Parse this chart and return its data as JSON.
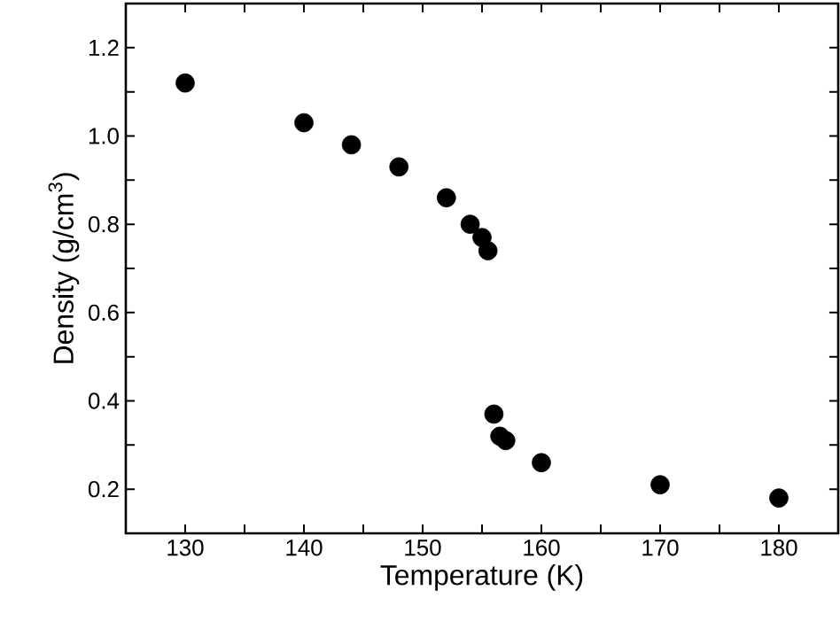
{
  "chart_data": {
    "type": "scatter",
    "xlabel": "Temperature (K)",
    "ylabel": "Density (g/cm$^{3}$)",
    "xlim": [
      125,
      185
    ],
    "ylim": [
      0.1,
      1.3
    ],
    "xticks": [
      {
        "value": 125,
        "label": null
      },
      130,
      {
        "value": 135,
        "label": null
      },
      140,
      {
        "value": 145,
        "label": null
      },
      150,
      {
        "value": 155,
        "label": null
      },
      160,
      {
        "value": 165,
        "label": null
      },
      170,
      {
        "value": 175,
        "label": null
      },
      180,
      {
        "value": 185,
        "label": null
      }
    ],
    "yticks": [
      {
        "value": 0.1,
        "label": null
      },
      0.2,
      {
        "value": 0.3,
        "label": null
      },
      0.4,
      {
        "value": 0.5,
        "label": null
      },
      0.6,
      {
        "value": 0.7,
        "label": null
      },
      0.8,
      {
        "value": 0.9,
        "label": null
      },
      {
        "value": 1.0,
        "label": "1.0"
      },
      {
        "value": 1.1,
        "label": null
      },
      1.2,
      {
        "value": 1.3,
        "label": null
      }
    ],
    "marker": "circle",
    "grid": false,
    "series": [
      {
        "color": "#000000",
        "x": [
          130,
          140,
          144,
          148,
          152,
          154,
          155,
          155.5,
          156,
          156.5,
          157,
          160,
          170,
          180
        ],
        "values": [
          1.12,
          1.03,
          0.98,
          0.93,
          0.86,
          0.8,
          0.77,
          0.74,
          0.37,
          0.32,
          0.31,
          0.26,
          0.21,
          0.18
        ]
      }
    ]
  }
}
